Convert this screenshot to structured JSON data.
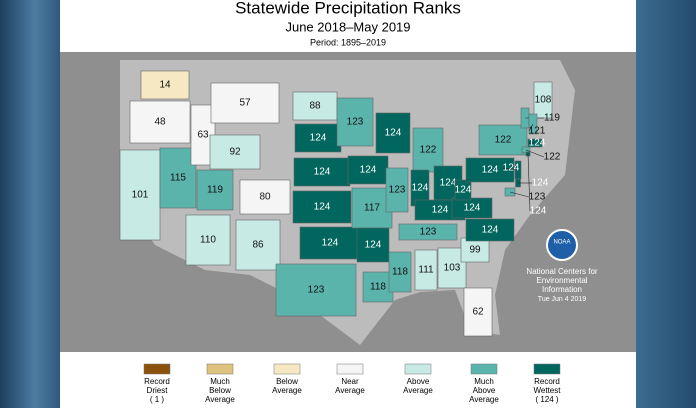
{
  "header": {
    "title": "Statewide Precipitation Ranks",
    "subtitle": "June 2018–May 2019",
    "period": "Period: 1895–2019"
  },
  "map": {
    "states": [
      {
        "rank": 14,
        "color": "#f6e8c3"
      },
      {
        "rank": 48,
        "color": "#f5f5f5"
      },
      {
        "rank": 101,
        "color": "#c7eae5"
      },
      {
        "rank": 115,
        "color": "#5ab4ac"
      },
      {
        "rank": 63,
        "color": "#f5f5f5"
      },
      {
        "rank": 57,
        "color": "#f5f5f5"
      },
      {
        "rank": 92,
        "color": "#c7eae5"
      },
      {
        "rank": 119,
        "color": "#5ab4ac"
      },
      {
        "rank": 80,
        "color": "#f5f5f5"
      },
      {
        "rank": 110,
        "color": "#c7eae5"
      },
      {
        "rank": 86,
        "color": "#c7eae5"
      },
      {
        "rank": 88,
        "color": "#c7eae5"
      },
      {
        "rank": 124,
        "color": "#01665e"
      },
      {
        "rank": 124,
        "color": "#01665e"
      },
      {
        "rank": 124,
        "color": "#01665e"
      },
      {
        "rank": 124,
        "color": "#01665e"
      },
      {
        "rank": 123,
        "color": "#5ab4ac"
      },
      {
        "rank": 123,
        "color": "#5ab4ac"
      },
      {
        "rank": 124,
        "color": "#01665e"
      },
      {
        "rank": 117,
        "color": "#5ab4ac"
      },
      {
        "rank": 124,
        "color": "#01665e"
      },
      {
        "rank": 118,
        "color": "#5ab4ac"
      },
      {
        "rank": 124,
        "color": "#01665e"
      },
      {
        "rank": 123,
        "color": "#5ab4ac"
      },
      {
        "rank": 122,
        "color": "#5ab4ac"
      },
      {
        "rank": 124,
        "color": "#01665e"
      },
      {
        "rank": 124,
        "color": "#01665e"
      },
      {
        "rank": 124,
        "color": "#01665e"
      },
      {
        "rank": 123,
        "color": "#5ab4ac"
      },
      {
        "rank": 118,
        "color": "#5ab4ac"
      },
      {
        "rank": 111,
        "color": "#c7eae5"
      },
      {
        "rank": 103,
        "color": "#c7eae5"
      },
      {
        "rank": 62,
        "color": "#f5f5f5"
      },
      {
        "rank": 99,
        "color": "#c7eae5"
      },
      {
        "rank": 124,
        "color": "#01665e"
      },
      {
        "rank": 124,
        "color": "#01665e"
      },
      {
        "rank": 124,
        "color": "#01665e"
      },
      {
        "rank": 124,
        "color": "#01665e"
      },
      {
        "rank": 122,
        "color": "#5ab4ac"
      },
      {
        "rank": 108,
        "color": "#c7eae5"
      },
      {
        "rank": 119,
        "color": "#5ab4ac"
      },
      {
        "rank": 121,
        "color": "#5ab4ac"
      },
      {
        "rank": 124,
        "color": "#01665e"
      },
      {
        "rank": 122,
        "color": "#5ab4ac"
      },
      {
        "rank": 124,
        "color": "#01665e"
      },
      {
        "rank": 124,
        "color": "#01665e"
      },
      {
        "rank": 123,
        "color": "#5ab4ac"
      },
      {
        "rank": 124,
        "color": "#01665e"
      }
    ]
  },
  "agency": {
    "logo": "NOAA",
    "name": [
      "National Centers for",
      "Environmental",
      "Information"
    ],
    "date": "Tue Jun  4 2019"
  },
  "legend": [
    {
      "color": "#8c510a",
      "lines": [
        "Record",
        "Driest",
        "( 1 )"
      ]
    },
    {
      "color": "#dfc27d",
      "lines": [
        "Much",
        "Below",
        "Average"
      ]
    },
    {
      "color": "#f6e8c3",
      "lines": [
        "Below",
        "Average"
      ]
    },
    {
      "color": "#f5f5f5",
      "lines": [
        "Near",
        "Average"
      ]
    },
    {
      "color": "#c7eae5",
      "lines": [
        "Above",
        "Average"
      ]
    },
    {
      "color": "#5ab4ac",
      "lines": [
        "Much",
        "Above",
        "Average"
      ]
    },
    {
      "color": "#01665e",
      "lines": [
        "Record",
        "Wettest",
        "( 124 )"
      ]
    }
  ]
}
